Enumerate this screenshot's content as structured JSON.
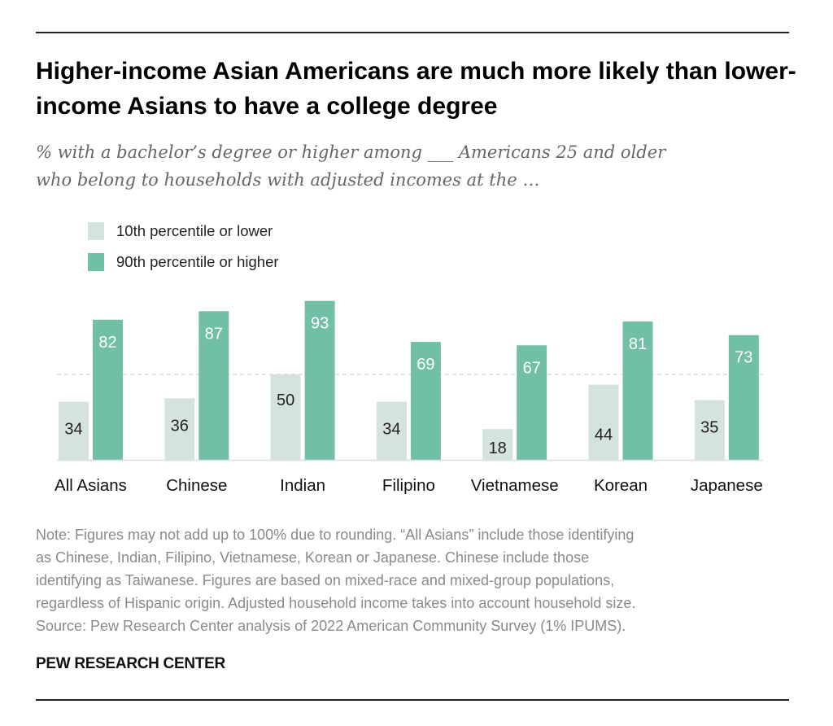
{
  "title": "Higher-income Asian Americans are much more likely than lower-income Asians to have a college degree",
  "subtitle_lines": [
    "% with a bachelor’s degree or higher among ___ Americans 25 and older",
    "who belong to households with adjusted incomes at the …"
  ],
  "note_lines": [
    "Note: Figures may not add up to 100% due to rounding. “All Asians” include those identifying",
    "as Chinese, Indian, Filipino, Vietnamese, Korean or Japanese. Chinese include those",
    "identifying as Taiwanese. Figures are based on mixed-race and mixed-group populations,",
    "regardless of Hispanic origin. Adjusted household income takes into account household size.",
    "Source: Pew Research Center analysis of 2022 American Community Survey (1% IPUMS)."
  ],
  "brand": "PEW RESEARCH CENTER",
  "chart_data": {
    "type": "bar",
    "categories": [
      "All Asians",
      "Chinese",
      "Indian",
      "Filipino",
      "Vietnamese",
      "Korean",
      "Japanese"
    ],
    "series": [
      {
        "name": "10th percentile or lower",
        "color": "#d5e3de",
        "label_color": "#222222",
        "values": [
          34,
          36,
          50,
          34,
          18,
          44,
          35
        ]
      },
      {
        "name": "90th percentile or higher",
        "color": "#72bfa8",
        "label_color": "#ffffff",
        "values": [
          82,
          87,
          93,
          69,
          67,
          81,
          73
        ]
      }
    ],
    "ylim": [
      0,
      100
    ],
    "reference_line": 50,
    "legend_position": "top-left",
    "grid": false
  }
}
